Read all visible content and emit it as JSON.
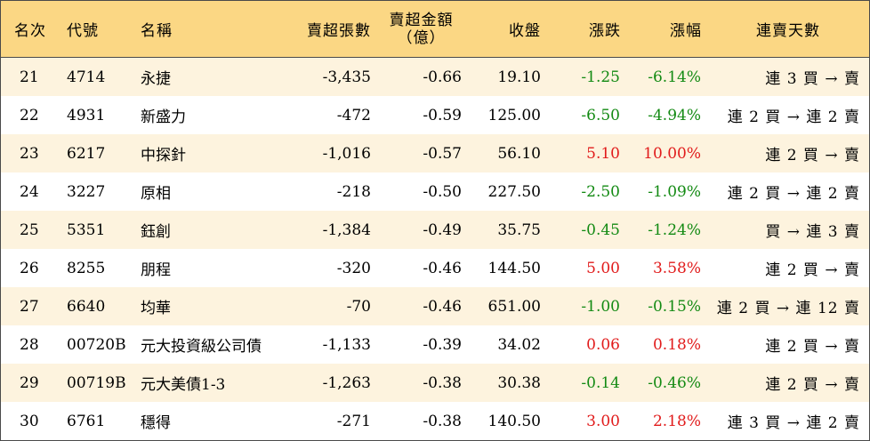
{
  "columns": {
    "rank": "名次",
    "code": "代號",
    "name": "名稱",
    "net_sell_shares": "賣超張數",
    "net_sell_amount_line1": "賣超金額",
    "net_sell_amount_line2": "（億）",
    "close": "收盤",
    "change": "漲跌",
    "change_pct": "漲幅",
    "streak": "連賣天數"
  },
  "colors": {
    "header_bg": "#fbd784",
    "odd_row_bg": "#fdf3de",
    "up": "#e11b1b",
    "down": "#138a13"
  },
  "rows": [
    {
      "rank": "21",
      "code": "4714",
      "name": "永捷",
      "shares": "-3,435",
      "amount": "-0.66",
      "close": "19.10",
      "change": "-1.25",
      "pct": "-6.14%",
      "dir": "down",
      "streak": "連 3 買 → 賣"
    },
    {
      "rank": "22",
      "code": "4931",
      "name": "新盛力",
      "shares": "-472",
      "amount": "-0.59",
      "close": "125.00",
      "change": "-6.50",
      "pct": "-4.94%",
      "dir": "down",
      "streak": "連 2 買 → 連 2 賣"
    },
    {
      "rank": "23",
      "code": "6217",
      "name": "中探針",
      "shares": "-1,016",
      "amount": "-0.57",
      "close": "56.10",
      "change": "5.10",
      "pct": "10.00%",
      "dir": "up",
      "streak": "連 2 買 → 賣"
    },
    {
      "rank": "24",
      "code": "3227",
      "name": "原相",
      "shares": "-218",
      "amount": "-0.50",
      "close": "227.50",
      "change": "-2.50",
      "pct": "-1.09%",
      "dir": "down",
      "streak": "連 2 買 → 連 2 賣"
    },
    {
      "rank": "25",
      "code": "5351",
      "name": "鈺創",
      "shares": "-1,384",
      "amount": "-0.49",
      "close": "35.75",
      "change": "-0.45",
      "pct": "-1.24%",
      "dir": "down",
      "streak": "買 → 連 3 賣"
    },
    {
      "rank": "26",
      "code": "8255",
      "name": "朋程",
      "shares": "-320",
      "amount": "-0.46",
      "close": "144.50",
      "change": "5.00",
      "pct": "3.58%",
      "dir": "up",
      "streak": "連 2 買 → 賣"
    },
    {
      "rank": "27",
      "code": "6640",
      "name": "均華",
      "shares": "-70",
      "amount": "-0.46",
      "close": "651.00",
      "change": "-1.00",
      "pct": "-0.15%",
      "dir": "down",
      "streak": "連 2 買 → 連 12 賣"
    },
    {
      "rank": "28",
      "code": "00720B",
      "name": "元大投資級公司債",
      "shares": "-1,133",
      "amount": "-0.39",
      "close": "34.02",
      "change": "0.06",
      "pct": "0.18%",
      "dir": "up",
      "streak": "連 2 買 → 賣"
    },
    {
      "rank": "29",
      "code": "00719B",
      "name": "元大美債1-3",
      "shares": "-1,263",
      "amount": "-0.38",
      "close": "30.38",
      "change": "-0.14",
      "pct": "-0.46%",
      "dir": "down",
      "streak": "連 2 買 → 賣"
    },
    {
      "rank": "30",
      "code": "6761",
      "name": "穩得",
      "shares": "-271",
      "amount": "-0.38",
      "close": "140.50",
      "change": "3.00",
      "pct": "2.18%",
      "dir": "up",
      "streak": "連 3 買 → 連 2 賣"
    }
  ]
}
